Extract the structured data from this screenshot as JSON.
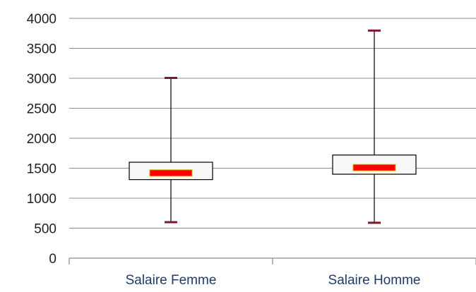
{
  "chart_data": {
    "type": "boxplot",
    "title": "",
    "xlabel": "",
    "ylabel": "",
    "ylim": [
      0,
      4000
    ],
    "yticks": [
      0,
      500,
      1000,
      1500,
      2000,
      2500,
      3000,
      3500,
      4000
    ],
    "grid": true,
    "categories": [
      "Salaire Femme",
      "Salaire Homme"
    ],
    "boxes": [
      {
        "category": "Salaire Femme",
        "min": 600,
        "q1": 1310,
        "median": 1420,
        "q3": 1600,
        "max": 3000
      },
      {
        "category": "Salaire Homme",
        "min": 590,
        "q1": 1400,
        "median": 1510,
        "q3": 1720,
        "max": 3790
      }
    ],
    "colors": {
      "box_fill": "#f7f7f7",
      "median_fill": "#ff0000",
      "median_border": "#c8b400",
      "whisker_cap": "#7a1a2a",
      "grid": "#8c8c8c"
    }
  }
}
